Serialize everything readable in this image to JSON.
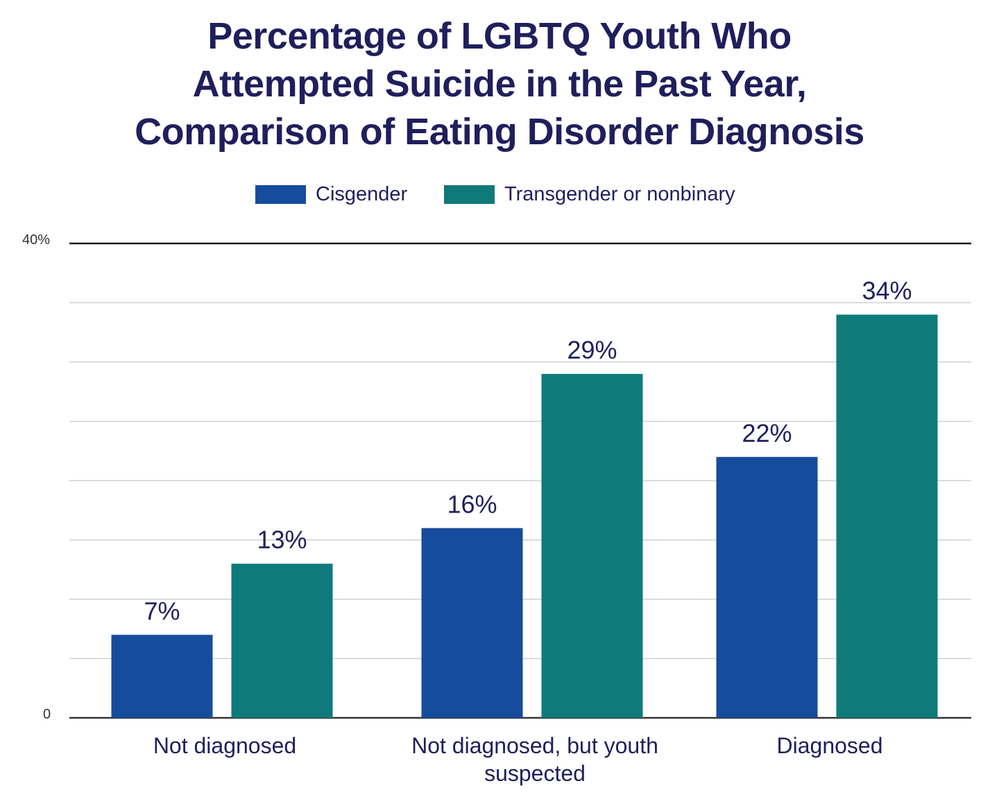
{
  "chart_data": {
    "type": "bar",
    "title_lines": [
      "Percentage of LGBTQ Youth Who",
      "Attempted Suicide in the Past Year,",
      "Comparison of Eating Disorder Diagnosis"
    ],
    "categories": [
      [
        "Not diagnosed"
      ],
      [
        "Not diagnosed, but youth",
        "suspected"
      ],
      [
        "Diagnosed"
      ]
    ],
    "series": [
      {
        "name": "Cisgender",
        "color": "#164c9c",
        "values": [
          7,
          16,
          22
        ],
        "labels": [
          "7%",
          "16%",
          "22%"
        ]
      },
      {
        "name": "Transgender or nonbinary",
        "color": "#0f7a7a",
        "values": [
          13,
          29,
          34
        ],
        "labels": [
          "13%",
          "29%",
          "34%"
        ]
      }
    ],
    "ylim": [
      0,
      40
    ],
    "y_tick_labels": {
      "top": "40%",
      "bottom": "0"
    },
    "gridlines": 8,
    "xlabel": "",
    "ylabel": "",
    "legend_position": "top-center"
  }
}
